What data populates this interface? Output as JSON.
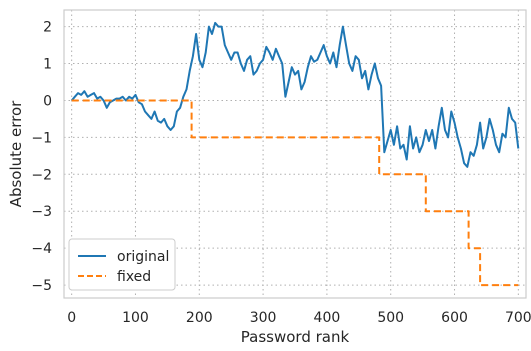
{
  "chart_data": {
    "type": "line",
    "xlabel": "Password rank",
    "ylabel": "Absolute error",
    "xlim": [
      -12,
      712
    ],
    "ylim": [
      -5.35,
      2.45
    ],
    "xticks": [
      0,
      100,
      200,
      300,
      400,
      500,
      600,
      700
    ],
    "yticks": [
      2,
      1,
      0,
      -1,
      -2,
      -3,
      -4,
      -5
    ],
    "grid": true,
    "legend": {
      "placement": "lower-left"
    },
    "series": [
      {
        "name": "original",
        "color": "#1f77b4",
        "style": "solid",
        "points": [
          [
            0,
            0.0
          ],
          [
            5,
            0.1
          ],
          [
            10,
            0.2
          ],
          [
            15,
            0.15
          ],
          [
            20,
            0.25
          ],
          [
            25,
            0.1
          ],
          [
            30,
            0.15
          ],
          [
            35,
            0.2
          ],
          [
            40,
            0.05
          ],
          [
            45,
            0.1
          ],
          [
            50,
            0.0
          ],
          [
            55,
            -0.2
          ],
          [
            60,
            -0.05
          ],
          [
            65,
            0.0
          ],
          [
            70,
            0.05
          ],
          [
            75,
            0.05
          ],
          [
            80,
            0.1
          ],
          [
            85,
            0.0
          ],
          [
            90,
            0.1
          ],
          [
            95,
            0.05
          ],
          [
            100,
            0.15
          ],
          [
            105,
            -0.05
          ],
          [
            110,
            -0.1
          ],
          [
            115,
            -0.3
          ],
          [
            120,
            -0.4
          ],
          [
            125,
            -0.5
          ],
          [
            130,
            -0.3
          ],
          [
            135,
            -0.55
          ],
          [
            140,
            -0.6
          ],
          [
            145,
            -0.5
          ],
          [
            150,
            -0.7
          ],
          [
            155,
            -0.8
          ],
          [
            160,
            -0.7
          ],
          [
            165,
            -0.3
          ],
          [
            170,
            -0.2
          ],
          [
            175,
            0.1
          ],
          [
            180,
            0.3
          ],
          [
            185,
            0.8
          ],
          [
            190,
            1.2
          ],
          [
            195,
            1.8
          ],
          [
            200,
            1.1
          ],
          [
            205,
            0.9
          ],
          [
            210,
            1.3
          ],
          [
            215,
            2.0
          ],
          [
            220,
            1.8
          ],
          [
            225,
            2.1
          ],
          [
            230,
            2.0
          ],
          [
            235,
            2.0
          ],
          [
            240,
            1.5
          ],
          [
            245,
            1.3
          ],
          [
            250,
            1.1
          ],
          [
            255,
            1.3
          ],
          [
            260,
            1.3
          ],
          [
            265,
            1.0
          ],
          [
            270,
            0.8
          ],
          [
            275,
            1.1
          ],
          [
            280,
            1.2
          ],
          [
            285,
            0.7
          ],
          [
            290,
            0.8
          ],
          [
            295,
            1.0
          ],
          [
            300,
            1.1
          ],
          [
            305,
            1.45
          ],
          [
            310,
            1.3
          ],
          [
            315,
            1.1
          ],
          [
            320,
            1.4
          ],
          [
            325,
            1.2
          ],
          [
            330,
            1.0
          ],
          [
            335,
            0.1
          ],
          [
            340,
            0.5
          ],
          [
            345,
            0.9
          ],
          [
            350,
            0.7
          ],
          [
            355,
            0.8
          ],
          [
            360,
            0.3
          ],
          [
            365,
            0.5
          ],
          [
            370,
            0.9
          ],
          [
            375,
            1.2
          ],
          [
            380,
            1.05
          ],
          [
            385,
            1.1
          ],
          [
            390,
            1.3
          ],
          [
            395,
            1.5
          ],
          [
            400,
            1.2
          ],
          [
            405,
            1.0
          ],
          [
            410,
            1.3
          ],
          [
            415,
            0.9
          ],
          [
            420,
            1.5
          ],
          [
            425,
            2.0
          ],
          [
            430,
            1.5
          ],
          [
            435,
            1.0
          ],
          [
            440,
            0.8
          ],
          [
            445,
            1.2
          ],
          [
            450,
            1.1
          ],
          [
            455,
            0.6
          ],
          [
            460,
            0.8
          ],
          [
            465,
            0.3
          ],
          [
            470,
            0.7
          ],
          [
            475,
            1.0
          ],
          [
            480,
            0.6
          ],
          [
            485,
            0.4
          ],
          [
            490,
            -1.4
          ],
          [
            495,
            -1.1
          ],
          [
            500,
            -0.8
          ],
          [
            505,
            -1.2
          ],
          [
            510,
            -0.7
          ],
          [
            515,
            -1.3
          ],
          [
            520,
            -1.2
          ],
          [
            525,
            -1.6
          ],
          [
            530,
            -0.7
          ],
          [
            535,
            -1.3
          ],
          [
            540,
            -1.0
          ],
          [
            545,
            -1.4
          ],
          [
            550,
            -1.2
          ],
          [
            555,
            -0.8
          ],
          [
            560,
            -1.1
          ],
          [
            565,
            -0.8
          ],
          [
            570,
            -1.3
          ],
          [
            575,
            -0.7
          ],
          [
            580,
            -0.2
          ],
          [
            585,
            -0.8
          ],
          [
            590,
            -1.0
          ],
          [
            595,
            -0.3
          ],
          [
            600,
            -0.6
          ],
          [
            605,
            -1.0
          ],
          [
            610,
            -1.3
          ],
          [
            615,
            -1.7
          ],
          [
            620,
            -1.8
          ],
          [
            625,
            -1.4
          ],
          [
            630,
            -1.5
          ],
          [
            635,
            -1.2
          ],
          [
            640,
            -0.6
          ],
          [
            645,
            -1.3
          ],
          [
            650,
            -1.0
          ],
          [
            655,
            -0.5
          ],
          [
            660,
            -0.8
          ],
          [
            665,
            -1.2
          ],
          [
            670,
            -1.4
          ],
          [
            675,
            -0.9
          ],
          [
            680,
            -1.0
          ],
          [
            685,
            -0.2
          ],
          [
            690,
            -0.5
          ],
          [
            695,
            -0.6
          ],
          [
            700,
            -1.3
          ]
        ]
      },
      {
        "name": "fixed",
        "color": "#ff7f0e",
        "style": "dashed",
        "points": [
          [
            0,
            0
          ],
          [
            188,
            0
          ],
          [
            188,
            -1
          ],
          [
            482,
            -1
          ],
          [
            482,
            -2
          ],
          [
            555,
            -2
          ],
          [
            555,
            -3
          ],
          [
            622,
            -3
          ],
          [
            622,
            -4
          ],
          [
            640,
            -4
          ],
          [
            640,
            -5
          ],
          [
            700,
            -5
          ]
        ]
      }
    ]
  }
}
